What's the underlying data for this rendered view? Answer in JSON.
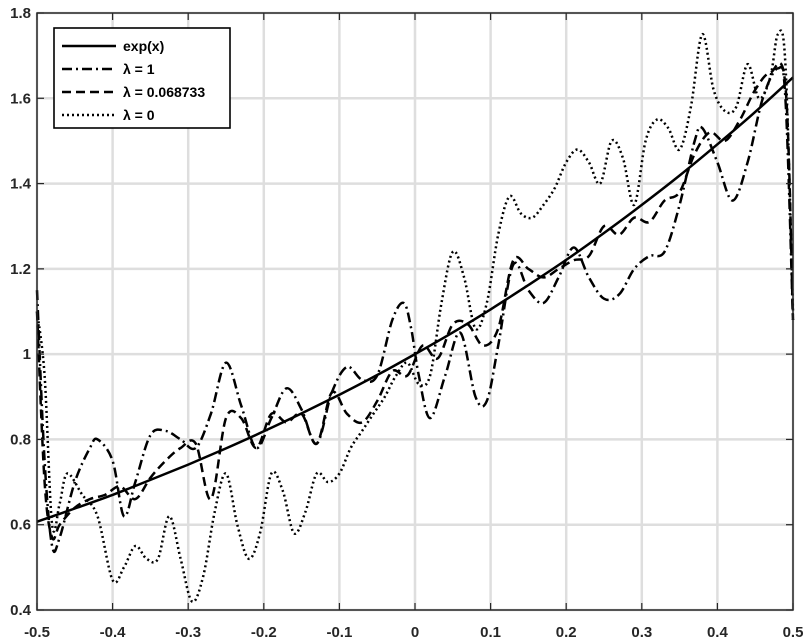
{
  "chart_data": {
    "type": "line",
    "title": "",
    "xlabel": "",
    "ylabel": "",
    "xlim": [
      -0.5,
      0.5
    ],
    "ylim": [
      0.4,
      1.8
    ],
    "xticks": [
      -0.5,
      -0.4,
      -0.3,
      -0.2,
      -0.1,
      0,
      0.1,
      0.2,
      0.3,
      0.4,
      0.5
    ],
    "xtick_labels": [
      "-0.5",
      "-0.4",
      "-0.3",
      "-0.2",
      "-0.1",
      "0",
      "0.1",
      "0.2",
      "0.3",
      "0.4",
      "0.5"
    ],
    "yticks": [
      0.4,
      0.6,
      0.8,
      1.0,
      1.2,
      1.4,
      1.6,
      1.8
    ],
    "ytick_labels": [
      "0.4",
      "0.6",
      "0.8",
      "1",
      "1.2",
      "1.4",
      "1.6",
      "1.8"
    ],
    "grid": true,
    "legend_position": "top-left",
    "series": [
      {
        "name": "exp(x)",
        "dash": "solid",
        "color": "#000000",
        "x": [
          -0.5,
          -0.45,
          -0.4,
          -0.35,
          -0.3,
          -0.25,
          -0.2,
          -0.15,
          -0.1,
          -0.05,
          0,
          0.05,
          0.1,
          0.15,
          0.2,
          0.25,
          0.3,
          0.35,
          0.4,
          0.45,
          0.5
        ],
        "y": [
          0.607,
          0.638,
          0.67,
          0.705,
          0.741,
          0.779,
          0.819,
          0.861,
          0.905,
          0.951,
          1.0,
          1.051,
          1.105,
          1.162,
          1.221,
          1.284,
          1.35,
          1.419,
          1.492,
          1.568,
          1.649
        ]
      },
      {
        "name": "λ = 1",
        "dash": "dashdot",
        "color": "#000000",
        "x": [
          -0.5,
          -0.49,
          -0.48,
          -0.47,
          -0.45,
          -0.43,
          -0.42,
          -0.4,
          -0.385,
          -0.37,
          -0.35,
          -0.33,
          -0.31,
          -0.29,
          -0.27,
          -0.25,
          -0.23,
          -0.21,
          -0.19,
          -0.17,
          -0.15,
          -0.13,
          -0.11,
          -0.09,
          -0.07,
          -0.05,
          -0.03,
          -0.015,
          -0.005,
          0.005,
          0.02,
          0.04,
          0.06,
          0.08,
          0.095,
          0.11,
          0.13,
          0.15,
          0.17,
          0.19,
          0.21,
          0.23,
          0.25,
          0.27,
          0.29,
          0.31,
          0.33,
          0.35,
          0.37,
          0.38,
          0.4,
          0.42,
          0.44,
          0.46,
          0.48,
          0.49,
          0.5
        ],
        "y": [
          1.15,
          0.75,
          0.55,
          0.57,
          0.7,
          0.78,
          0.8,
          0.75,
          0.62,
          0.7,
          0.81,
          0.82,
          0.8,
          0.78,
          0.86,
          0.98,
          0.88,
          0.78,
          0.85,
          0.92,
          0.87,
          0.79,
          0.91,
          0.97,
          0.94,
          0.95,
          1.08,
          1.12,
          1.06,
          0.95,
          0.85,
          0.95,
          1.05,
          0.9,
          0.89,
          1.02,
          1.21,
          1.15,
          1.12,
          1.18,
          1.25,
          1.18,
          1.13,
          1.14,
          1.2,
          1.23,
          1.24,
          1.35,
          1.5,
          1.53,
          1.45,
          1.36,
          1.45,
          1.6,
          1.67,
          1.6,
          1.08
        ]
      },
      {
        "name": "λ = 0.068733",
        "dash": "dashed",
        "color": "#000000",
        "x": [
          -0.5,
          -0.49,
          -0.48,
          -0.47,
          -0.45,
          -0.43,
          -0.41,
          -0.39,
          -0.37,
          -0.35,
          -0.33,
          -0.31,
          -0.29,
          -0.27,
          -0.25,
          -0.23,
          -0.21,
          -0.19,
          -0.17,
          -0.15,
          -0.13,
          -0.11,
          -0.09,
          -0.07,
          -0.05,
          -0.03,
          -0.01,
          0.01,
          0.03,
          0.05,
          0.07,
          0.09,
          0.11,
          0.13,
          0.15,
          0.17,
          0.19,
          0.21,
          0.23,
          0.25,
          0.27,
          0.29,
          0.31,
          0.33,
          0.35,
          0.37,
          0.39,
          0.41,
          0.43,
          0.45,
          0.47,
          0.49,
          0.5
        ],
        "y": [
          1.1,
          0.7,
          0.57,
          0.6,
          0.64,
          0.66,
          0.67,
          0.69,
          0.66,
          0.71,
          0.75,
          0.78,
          0.79,
          0.66,
          0.85,
          0.85,
          0.78,
          0.86,
          0.84,
          0.86,
          0.79,
          0.91,
          0.86,
          0.84,
          0.89,
          0.96,
          0.95,
          1.02,
          0.99,
          1.07,
          1.07,
          1.02,
          1.06,
          1.22,
          1.2,
          1.18,
          1.2,
          1.22,
          1.23,
          1.3,
          1.28,
          1.32,
          1.31,
          1.36,
          1.38,
          1.47,
          1.52,
          1.5,
          1.55,
          1.62,
          1.66,
          1.63,
          1.08
        ]
      },
      {
        "name": "λ = 0",
        "dash": "dotted",
        "color": "#000000",
        "x": [
          -0.5,
          -0.49,
          -0.48,
          -0.47,
          -0.46,
          -0.44,
          -0.42,
          -0.4,
          -0.385,
          -0.37,
          -0.355,
          -0.34,
          -0.325,
          -0.31,
          -0.295,
          -0.28,
          -0.265,
          -0.25,
          -0.235,
          -0.22,
          -0.205,
          -0.19,
          -0.175,
          -0.16,
          -0.145,
          -0.13,
          -0.115,
          -0.1,
          -0.085,
          -0.07,
          -0.055,
          -0.04,
          -0.025,
          -0.01,
          0.005,
          0.02,
          0.035,
          0.05,
          0.065,
          0.08,
          0.095,
          0.11,
          0.125,
          0.14,
          0.155,
          0.17,
          0.185,
          0.2,
          0.215,
          0.23,
          0.245,
          0.26,
          0.275,
          0.29,
          0.305,
          0.32,
          0.335,
          0.35,
          0.365,
          0.38,
          0.395,
          0.41,
          0.425,
          0.44,
          0.455,
          0.47,
          0.48,
          0.49,
          0.5
        ],
        "y": [
          1.1,
          0.95,
          0.6,
          0.65,
          0.72,
          0.67,
          0.62,
          0.47,
          0.5,
          0.55,
          0.52,
          0.52,
          0.62,
          0.52,
          0.42,
          0.48,
          0.63,
          0.72,
          0.6,
          0.52,
          0.58,
          0.72,
          0.68,
          0.58,
          0.63,
          0.72,
          0.7,
          0.72,
          0.78,
          0.82,
          0.86,
          0.9,
          0.95,
          0.98,
          0.93,
          0.95,
          1.12,
          1.24,
          1.18,
          1.06,
          1.12,
          1.28,
          1.37,
          1.33,
          1.32,
          1.35,
          1.39,
          1.45,
          1.48,
          1.45,
          1.4,
          1.5,
          1.46,
          1.35,
          1.5,
          1.55,
          1.53,
          1.48,
          1.58,
          1.75,
          1.62,
          1.57,
          1.58,
          1.68,
          1.6,
          1.65,
          1.75,
          1.68,
          1.1
        ]
      }
    ]
  }
}
